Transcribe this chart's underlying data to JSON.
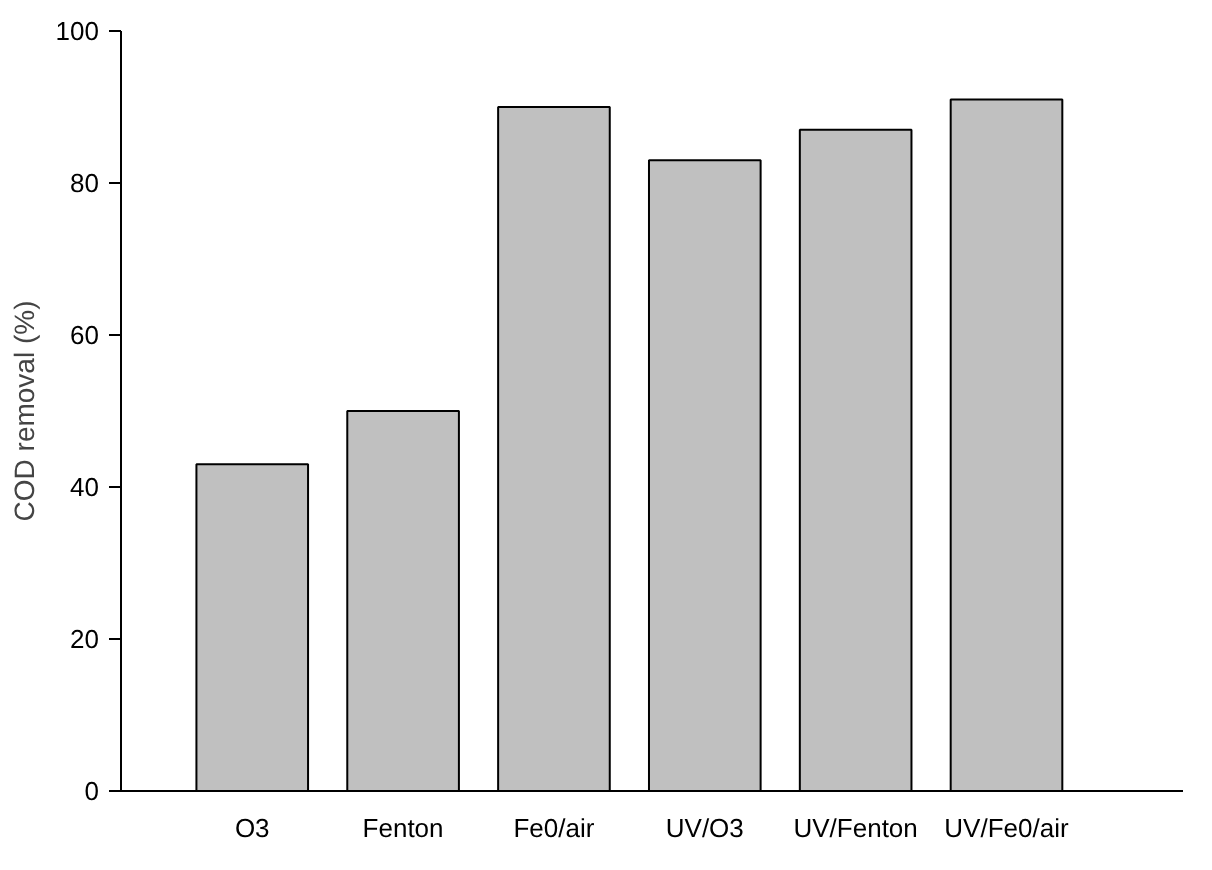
{
  "chart_data": {
    "type": "bar",
    "ylabel": "COD removal (%)",
    "categories": [
      "O3",
      "Fenton",
      "Fe0/air",
      "UV/O3",
      "UV/Fenton",
      "UV/Fe0/air"
    ],
    "values": [
      43,
      50,
      90,
      83,
      87,
      91
    ],
    "color": "#c0c0c0",
    "ylim": [
      0,
      100
    ],
    "yticks": [
      0,
      20,
      40,
      60,
      80,
      100
    ]
  }
}
